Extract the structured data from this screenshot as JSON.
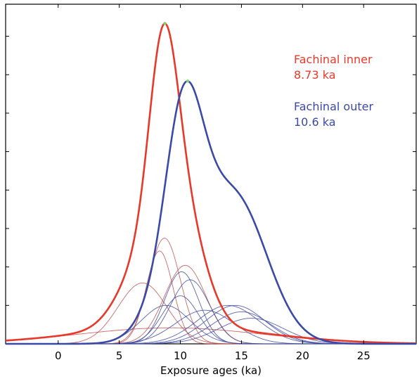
{
  "chart_data": {
    "type": "line",
    "title": "",
    "xlabel": "Exposure ages (ka)",
    "ylabel": "",
    "xlim": [
      -4.3,
      29.3
    ],
    "ylim": [
      0,
      1.06
    ],
    "xticks": [
      0,
      5,
      10,
      15,
      20,
      25
    ],
    "grid": false,
    "legend": [
      {
        "name": "Fachinal inner",
        "value": "8.73 ka",
        "color": "#e8382a"
      },
      {
        "name": "Fachinal outer",
        "value": "10.6 ka",
        "color": "#3a4aa6"
      }
    ],
    "series": [
      {
        "name": "Fachinal inner",
        "group": "inner",
        "role": "summary",
        "peak_x": 8.73,
        "peak_y": 1.0,
        "color": "#e8382a"
      },
      {
        "name": "Fachinal outer",
        "group": "outer",
        "role": "summary",
        "peak_x": 10.6,
        "peak_y": 0.82,
        "color": "#3a4aa6"
      }
    ],
    "individual_ages": {
      "inner": [
        {
          "age": 6.9,
          "sigma": 2.0,
          "peak": 0.19
        },
        {
          "age": 8.3,
          "sigma": 1.1,
          "peak": 0.29
        },
        {
          "age": 8.7,
          "sigma": 1.3,
          "peak": 0.33
        },
        {
          "age": 9.2,
          "sigma": 7.5,
          "peak": 0.05
        },
        {
          "age": 10.4,
          "sigma": 1.7,
          "peak": 0.245
        }
      ],
      "outer": [
        {
          "age": 8.8,
          "sigma": 2.0,
          "peak": 0.12
        },
        {
          "age": 10.0,
          "sigma": 1.5,
          "peak": 0.15
        },
        {
          "age": 10.1,
          "sigma": 1.4,
          "peak": 0.225
        },
        {
          "age": 10.8,
          "sigma": 1.6,
          "peak": 0.2
        },
        {
          "age": 12.0,
          "sigma": 2.4,
          "peak": 0.105
        },
        {
          "age": 13.9,
          "sigma": 2.5,
          "peak": 0.12
        },
        {
          "age": 14.5,
          "sigma": 2.4,
          "peak": 0.12
        },
        {
          "age": 15.0,
          "sigma": 2.4,
          "peak": 0.1
        },
        {
          "age": 15.8,
          "sigma": 2.6,
          "peak": 0.08
        }
      ]
    }
  }
}
